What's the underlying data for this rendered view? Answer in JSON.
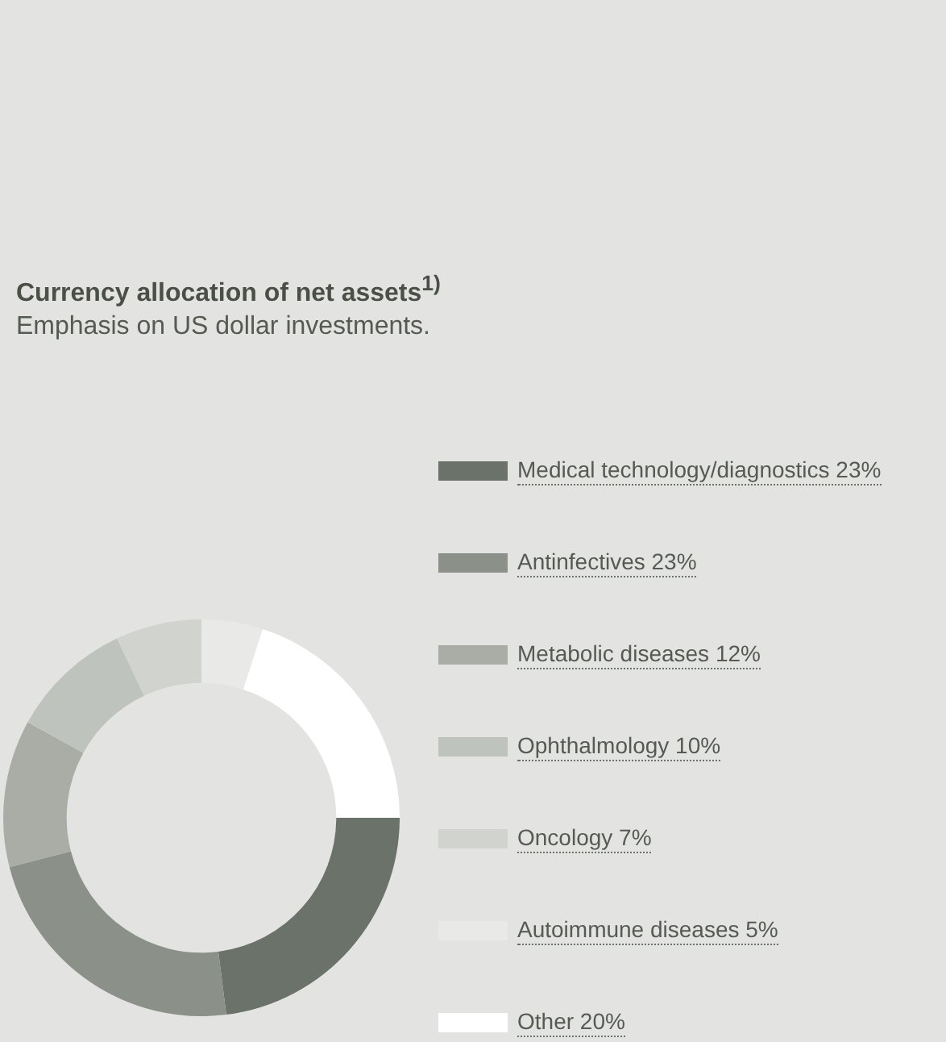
{
  "chart_data": {
    "type": "donut",
    "title": "Currency allocation of net assets$^{1)}$",
    "subtitle": "Emphasis on US dollar investments.",
    "categories": [
      "Medical technology/diagnostics",
      "Antinfectives",
      "Metabolic diseases",
      "Ophthalmology",
      "Oncology",
      "Autoimmune diseases",
      "Other"
    ],
    "values": [
      23,
      23,
      12,
      10,
      7,
      5,
      20
    ],
    "value_labels": [
      "23%",
      "23%",
      "12%",
      "10%",
      "7%",
      "5%",
      "20%"
    ],
    "colors": [
      "#6b7269",
      "#8b9088",
      "#a9ada6",
      "#bfc3bd",
      "#d0d3ce",
      "#e9eae7",
      "#ffffff"
    ],
    "legend": "right"
  }
}
